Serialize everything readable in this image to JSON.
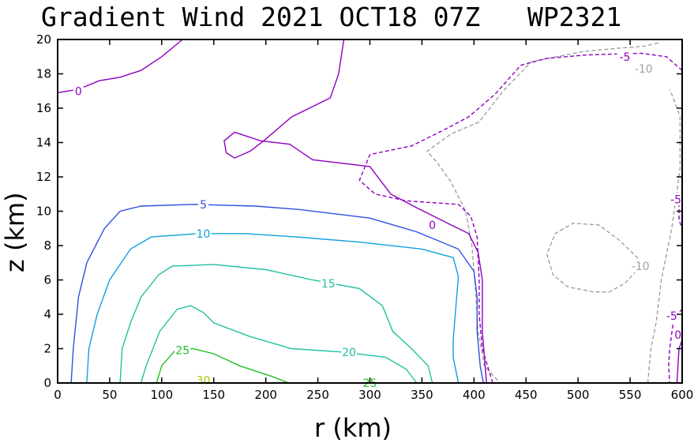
{
  "chart_data": {
    "type": "contour",
    "title_left": "Gradient Wind 2021 OCT18 07Z",
    "title_right": "WP2321",
    "xlabel": "r (km)",
    "ylabel": "z (km)",
    "xlim": [
      0,
      600
    ],
    "ylim": [
      0,
      20
    ],
    "xticks": [
      0,
      50,
      100,
      150,
      200,
      250,
      300,
      350,
      400,
      450,
      500,
      550,
      600
    ],
    "yticks": [
      0,
      2,
      4,
      6,
      8,
      10,
      12,
      14,
      16,
      18,
      20
    ],
    "contours": [
      {
        "level": -10,
        "color": "#a0a0a0",
        "dashed": true,
        "label": "-10",
        "labels": [
          [
            563,
            18.3
          ],
          [
            560,
            6.8
          ]
        ],
        "paths": [
          [
            [
              577,
              19.8
            ],
            [
              563,
              19.6
            ],
            [
              540,
              19.5
            ],
            [
              505,
              19.3
            ],
            [
              455,
              18.7
            ],
            [
              428,
              17.0
            ],
            [
              405,
              15.2
            ],
            [
              378,
              14.5
            ],
            [
              355,
              13.5
            ],
            [
              365,
              12.8
            ],
            [
              378,
              11.7
            ],
            [
              392,
              10.0
            ],
            [
              398,
              8.0
            ],
            [
              402,
              5.0
            ],
            [
              404,
              3.0
            ],
            [
              410,
              1.0
            ],
            [
              425,
              0
            ]
          ],
          [
            [
              560,
              6.8
            ],
            [
              545,
              5.8
            ],
            [
              530,
              5.3
            ],
            [
              515,
              5.3
            ],
            [
              490,
              5.6
            ],
            [
              476,
              6.3
            ],
            [
              470,
              7.5
            ],
            [
              478,
              8.7
            ],
            [
              495,
              9.3
            ],
            [
              520,
              9.2
            ],
            [
              540,
              8.3
            ],
            [
              557,
              7.3
            ],
            [
              560,
              6.8
            ]
          ],
          [
            [
              567,
              0
            ],
            [
              570,
              2.0
            ],
            [
              575,
              3.5
            ],
            [
              580,
              6.0
            ],
            [
              590,
              9.0
            ],
            [
              598,
              12.5
            ],
            [
              598,
              15.5
            ],
            [
              592,
              16.5
            ],
            [
              588,
              17.1
            ]
          ]
        ]
      },
      {
        "level": -5,
        "color": "#9000c0",
        "dashed": true,
        "label": "-5",
        "labels": [
          [
            545,
            19.0
          ],
          [
            594,
            10.7
          ],
          [
            590,
            3.9
          ]
        ],
        "paths": [
          [
            [
              600,
              18.2
            ],
            [
              585,
              19.0
            ],
            [
              560,
              19.2
            ],
            [
              508,
              19.1
            ],
            [
              470,
              18.9
            ],
            [
              445,
              18.5
            ],
            [
              420,
              16.8
            ],
            [
              395,
              15.5
            ],
            [
              370,
              14.7
            ],
            [
              340,
              13.8
            ],
            [
              300,
              13.3
            ],
            [
              290,
              11.8
            ],
            [
              305,
              11.0
            ],
            [
              335,
              10.6
            ],
            [
              385,
              10.4
            ],
            [
              397,
              9.7
            ],
            [
              403,
              8.5
            ],
            [
              405,
              6.0
            ],
            [
              405,
              4.0
            ],
            [
              408,
              2.0
            ],
            [
              418,
              0
            ]
          ],
          [
            [
              600,
              11.2
            ],
            [
              597,
              10.3
            ],
            [
              597,
              9.5
            ],
            [
              600,
              9.0
            ]
          ],
          [
            [
              600,
              4.3
            ],
            [
              592,
              3.8
            ],
            [
              588,
              2.0
            ],
            [
              587,
              1.0
            ],
            [
              588,
              0
            ]
          ]
        ]
      },
      {
        "level": 0,
        "color": "#9000c0",
        "dashed": false,
        "label": "0",
        "labels": [
          [
            20,
            17.0
          ],
          [
            360,
            9.2
          ],
          [
            596,
            2.8
          ]
        ],
        "paths": [
          [
            [
              0,
              16.9
            ],
            [
              20,
              17.1
            ],
            [
              40,
              17.6
            ],
            [
              60,
              17.8
            ],
            [
              80,
              18.2
            ],
            [
              100,
              19.0
            ],
            [
              120,
              20.0
            ]
          ],
          [
            [
              275,
              20.0
            ],
            [
              270,
              18.0
            ],
            [
              262,
              16.6
            ],
            [
              225,
              15.5
            ],
            [
              198,
              14.1
            ],
            [
              185,
              13.5
            ],
            [
              170,
              13.1
            ],
            [
              162,
              13.4
            ],
            [
              160,
              14.1
            ],
            [
              170,
              14.6
            ],
            [
              195,
              14.1
            ],
            [
              223,
              13.9
            ],
            [
              245,
              13.0
            ],
            [
              300,
              12.6
            ],
            [
              320,
              11.0
            ],
            [
              345,
              10.2
            ],
            [
              378,
              9.2
            ],
            [
              395,
              8.7
            ],
            [
              404,
              7.6
            ],
            [
              408,
              6.0
            ],
            [
              408,
              3.0
            ],
            [
              412,
              0
            ]
          ],
          [
            [
              595,
              0
            ],
            [
              596,
              1.0
            ],
            [
              597,
              2.0
            ],
            [
              600,
              2.5
            ]
          ]
        ]
      },
      {
        "level": 5,
        "color": "#3050e0",
        "dashed": false,
        "label": "5",
        "labels": [
          [
            140,
            10.4
          ]
        ],
        "paths": [
          [
            [
              13,
              0
            ],
            [
              15,
              2.0
            ],
            [
              20,
              5.0
            ],
            [
              28,
              7.0
            ],
            [
              45,
              9.0
            ],
            [
              60,
              10.0
            ],
            [
              80,
              10.3
            ],
            [
              130,
              10.4
            ],
            [
              190,
              10.3
            ],
            [
              232,
              10.1
            ],
            [
              300,
              9.6
            ],
            [
              345,
              8.8
            ],
            [
              385,
              7.8
            ],
            [
              400,
              6.5
            ],
            [
              403,
              5.0
            ],
            [
              403,
              3.0
            ],
            [
              406,
              1.0
            ],
            [
              409,
              0
            ]
          ]
        ]
      },
      {
        "level": 10,
        "color": "#10a0e0",
        "dashed": false,
        "label": "10",
        "labels": [
          [
            140,
            8.7
          ]
        ],
        "paths": [
          [
            [
              28,
              0
            ],
            [
              30,
              2.0
            ],
            [
              38,
              4.0
            ],
            [
              50,
              6.0
            ],
            [
              70,
              7.8
            ],
            [
              90,
              8.5
            ],
            [
              135,
              8.7
            ],
            [
              180,
              8.7
            ],
            [
              230,
              8.5
            ],
            [
              290,
              8.2
            ],
            [
              350,
              7.8
            ],
            [
              380,
              7.3
            ],
            [
              385,
              6.2
            ],
            [
              382,
              4.0
            ],
            [
              380,
              2.5
            ],
            [
              380,
              1.5
            ],
            [
              385,
              0
            ]
          ]
        ]
      },
      {
        "level": 15,
        "color": "#20c0a0",
        "dashed": false,
        "label": "15",
        "labels": [
          [
            260,
            5.8
          ]
        ],
        "paths": [
          [
            [
              60,
              0
            ],
            [
              62,
              2.0
            ],
            [
              70,
              3.5
            ],
            [
              80,
              5.0
            ],
            [
              97,
              6.3
            ],
            [
              110,
              6.8
            ],
            [
              150,
              6.9
            ],
            [
              200,
              6.6
            ],
            [
              245,
              6.0
            ],
            [
              290,
              5.5
            ],
            [
              312,
              4.5
            ],
            [
              322,
              3.0
            ],
            [
              340,
              2.0
            ],
            [
              356,
              1.0
            ],
            [
              360,
              0
            ]
          ]
        ]
      },
      {
        "level": 20,
        "color": "#20c0a0",
        "dashed": false,
        "label": "20",
        "labels": [
          [
            280,
            1.8
          ]
        ],
        "paths": [
          [
            [
              80,
              0
            ],
            [
              85,
              1.0
            ],
            [
              98,
              3.0
            ],
            [
              115,
              4.3
            ],
            [
              128,
              4.5
            ],
            [
              140,
              4.1
            ],
            [
              150,
              3.5
            ],
            [
              185,
              2.7
            ],
            [
              225,
              2.0
            ],
            [
              275,
              1.8
            ],
            [
              315,
              1.5
            ],
            [
              335,
              0.8
            ],
            [
              345,
              0
            ]
          ]
        ]
      },
      {
        "level": 25,
        "color": "#20c020",
        "dashed": false,
        "label": "25",
        "labels": [
          [
            120,
            1.9
          ],
          [
            300,
            0
          ]
        ],
        "paths": [
          [
            [
              95,
              0
            ],
            [
              100,
              1.0
            ],
            [
              113,
              1.9
            ],
            [
              130,
              2.0
            ],
            [
              150,
              1.7
            ],
            [
              175,
              1.0
            ],
            [
              205,
              0.4
            ],
            [
              222,
              0
            ]
          ]
        ]
      },
      {
        "level": 30,
        "color": "#a0d000",
        "dashed": false,
        "label": "30",
        "labels": [
          [
            140,
            0.15
          ]
        ],
        "paths": []
      }
    ]
  }
}
